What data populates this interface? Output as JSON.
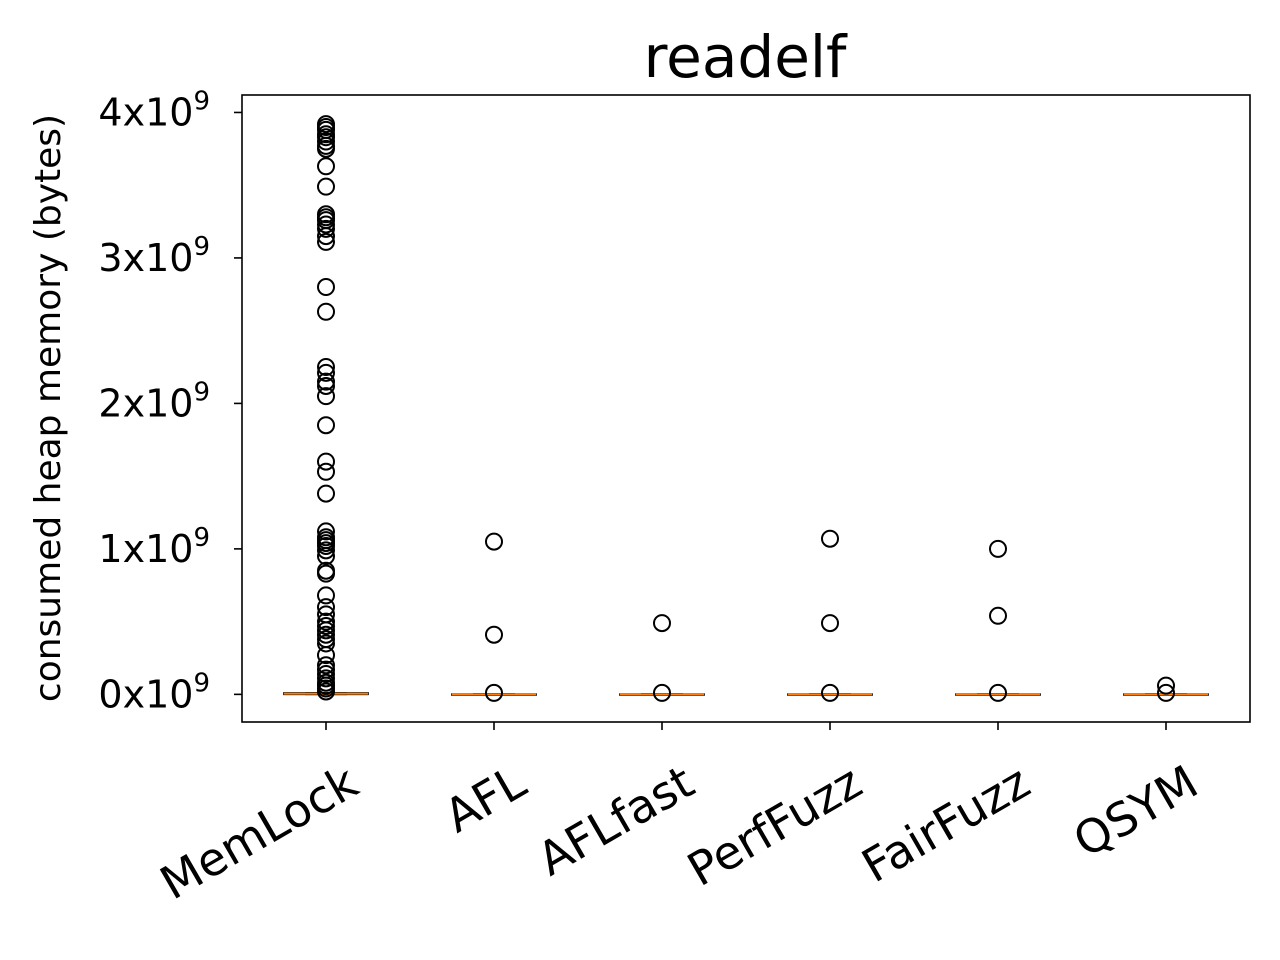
{
  "chart_data": {
    "type": "box",
    "title": "readelf",
    "xlabel": "",
    "ylabel": "consumed heap memory (bytes)",
    "categories": [
      "MemLock",
      "AFL",
      "AFLfast",
      "PerfFuzz",
      "FairFuzz",
      "QSYM"
    ],
    "ylim": [
      -0.19,
      4.12
    ],
    "y_unit_scale": "x10^9",
    "y_ticks": [
      {
        "value": 0,
        "label": "0x10",
        "exp": "9"
      },
      {
        "value": 1,
        "label": "1x10",
        "exp": "9"
      },
      {
        "value": 2,
        "label": "2x10",
        "exp": "9"
      },
      {
        "value": 3,
        "label": "3x10",
        "exp": "9"
      },
      {
        "value": 4,
        "label": "4x10",
        "exp": "9"
      }
    ],
    "grid": false,
    "box_color": "#000000",
    "median_color": "#ff7f0e",
    "boxes": [
      {
        "name": "MemLock",
        "q1": 0.0,
        "median": 0.005,
        "q3": 0.01,
        "whisker_low": 0.0,
        "whisker_high": 0.01
      },
      {
        "name": "AFL",
        "q1": 0.0,
        "median": 0.0,
        "q3": 0.002,
        "whisker_low": 0.0,
        "whisker_high": 0.003
      },
      {
        "name": "AFLfast",
        "q1": 0.0,
        "median": 0.0,
        "q3": 0.002,
        "whisker_low": 0.0,
        "whisker_high": 0.003
      },
      {
        "name": "PerfFuzz",
        "q1": 0.0,
        "median": 0.0,
        "q3": 0.002,
        "whisker_low": 0.0,
        "whisker_high": 0.003
      },
      {
        "name": "FairFuzz",
        "q1": 0.0,
        "median": 0.0,
        "q3": 0.002,
        "whisker_low": 0.0,
        "whisker_high": 0.003
      },
      {
        "name": "QSYM",
        "q1": 0.0,
        "median": 0.0,
        "q3": 0.002,
        "whisker_low": 0.0,
        "whisker_high": 0.003
      }
    ],
    "outliers": [
      {
        "name": "MemLock",
        "values": [
          3.92,
          3.9,
          3.88,
          3.85,
          3.83,
          3.8,
          3.77,
          3.75,
          3.63,
          3.49,
          3.3,
          3.28,
          3.26,
          3.23,
          3.2,
          3.15,
          3.11,
          2.8,
          2.63,
          2.25,
          2.21,
          2.15,
          2.12,
          2.05,
          1.85,
          1.6,
          1.53,
          1.38,
          1.12,
          1.08,
          1.06,
          1.04,
          1.02,
          0.99,
          0.95,
          0.85,
          0.83,
          0.68,
          0.6,
          0.55,
          0.5,
          0.47,
          0.44,
          0.41,
          0.38,
          0.35,
          0.27,
          0.2,
          0.17,
          0.14,
          0.11,
          0.08,
          0.06,
          0.04,
          0.02
        ]
      },
      {
        "name": "AFL",
        "values": [
          1.05,
          0.41,
          0.01
        ]
      },
      {
        "name": "AFLfast",
        "values": [
          0.49,
          0.01
        ]
      },
      {
        "name": "PerfFuzz",
        "values": [
          1.07,
          0.49,
          0.01
        ]
      },
      {
        "name": "FairFuzz",
        "values": [
          1.0,
          0.54,
          0.01
        ]
      },
      {
        "name": "QSYM",
        "values": [
          0.06,
          0.01
        ]
      }
    ]
  }
}
